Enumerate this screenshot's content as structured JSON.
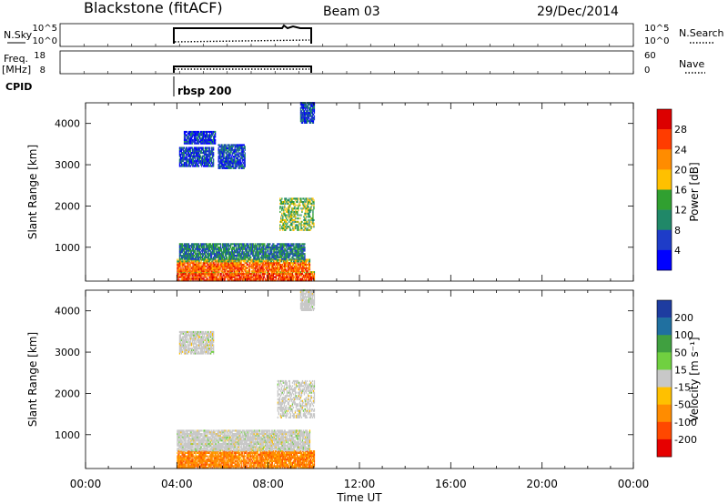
{
  "header": {
    "station": "Blackstone (fitACF)",
    "beam": "Beam 03",
    "date": "29/Dec/2014"
  },
  "top_panels": {
    "nsky": {
      "label": "N.Sky",
      "ticks_left": [
        "10^5",
        "10^0"
      ],
      "ticks_right": [
        "10^5",
        "10^0"
      ],
      "legend": "N.Search"
    },
    "freq": {
      "label_top": "Freq.",
      "label_bottom": "[MHz]",
      "ticks_left": [
        "18",
        "8"
      ],
      "ticks_right": [
        "60",
        "0"
      ],
      "legend": "Nave"
    },
    "cpid": {
      "label": "CPID",
      "program": "rbsp 200"
    }
  },
  "xaxis": {
    "label": "Time UT",
    "ticks": [
      "00:00",
      "04:00",
      "08:00",
      "12:00",
      "16:00",
      "20:00",
      "00:00"
    ]
  },
  "colorbars": {
    "power": {
      "label": "Power [dB]",
      "labels": [
        "28",
        "24",
        "20",
        "16",
        "12",
        "8",
        "4"
      ],
      "colors": [
        "#dc0000",
        "#ff3c00",
        "#ff8c00",
        "#ffc000",
        "#30a030",
        "#208868",
        "#1e3cc8",
        "#0000ff"
      ]
    },
    "velocity": {
      "label": "Velocity [m s⁻¹]",
      "labels": [
        "200",
        "100",
        "50",
        "15",
        "-15",
        "-50",
        "-100",
        "-200"
      ],
      "colors": [
        "#1e3ca0",
        "#2070a0",
        "#40a040",
        "#70d040",
        "#c8c8c8",
        "#ffc000",
        "#ff8c00",
        "#ff4800",
        "#e60000"
      ]
    }
  },
  "chart_data": [
    {
      "type": "heatmap",
      "name": "power",
      "ylabel": "Slant Range [km]",
      "ylim": [
        180,
        4500
      ],
      "yticks": [
        "1000",
        "2000",
        "3000",
        "4000"
      ],
      "xlim_hours": [
        0,
        24
      ],
      "data_window_hours": [
        4.0,
        10.0
      ],
      "regions": [
        {
          "t": [
            4.0,
            10.0
          ],
          "r": [
            180,
            400
          ],
          "value": 26
        },
        {
          "t": [
            4.0,
            9.8
          ],
          "r": [
            400,
            700
          ],
          "value": 24
        },
        {
          "t": [
            4.1,
            9.6
          ],
          "r": [
            700,
            1100
          ],
          "value": 10
        },
        {
          "t": [
            4.1,
            5.6
          ],
          "r": [
            2950,
            3400
          ],
          "value": 6
        },
        {
          "t": [
            5.8,
            7.0
          ],
          "r": [
            2900,
            3500
          ],
          "value": 6
        },
        {
          "t": [
            4.3,
            5.7
          ],
          "r": [
            3500,
            3800
          ],
          "value": 5
        },
        {
          "t": [
            8.5,
            10.0
          ],
          "r": [
            1400,
            2200
          ],
          "value": 14
        },
        {
          "t": [
            9.4,
            10.0
          ],
          "r": [
            4000,
            4500
          ],
          "value": 6
        }
      ]
    },
    {
      "type": "heatmap",
      "name": "velocity",
      "ylabel": "Slant Range [km]",
      "ylim": [
        180,
        4500
      ],
      "yticks": [
        "1000",
        "2000",
        "3000",
        "4000"
      ],
      "xlim_hours": [
        0,
        24
      ],
      "data_window_hours": [
        4.0,
        10.0
      ],
      "regions": [
        {
          "t": [
            4.0,
            10.0
          ],
          "r": [
            180,
            600
          ],
          "value": -80
        },
        {
          "t": [
            4.0,
            9.8
          ],
          "r": [
            600,
            1100
          ],
          "value": 0
        },
        {
          "t": [
            4.1,
            5.6
          ],
          "r": [
            2950,
            3500
          ],
          "value": 0
        },
        {
          "t": [
            8.4,
            10.0
          ],
          "r": [
            1400,
            2300
          ],
          "value": 0
        },
        {
          "t": [
            9.4,
            10.0
          ],
          "r": [
            4000,
            4500
          ],
          "value": 0
        }
      ]
    }
  ]
}
